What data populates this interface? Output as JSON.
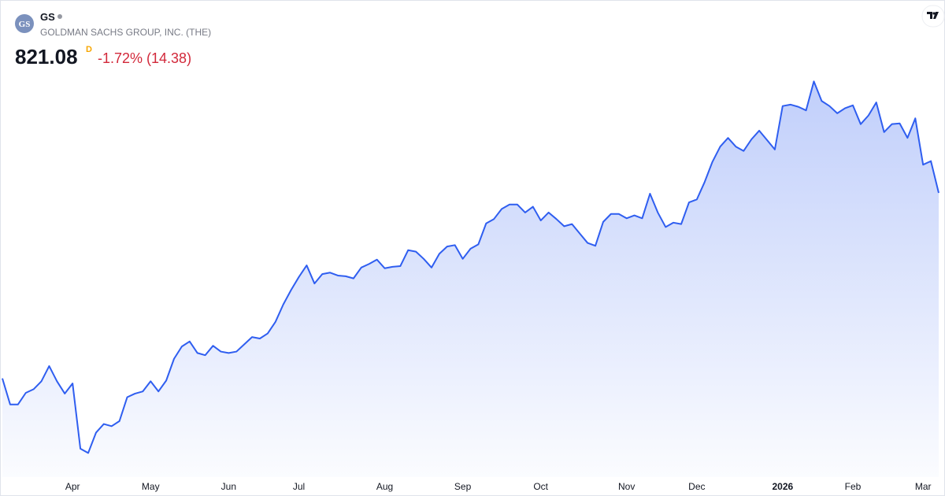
{
  "chart_data": {
    "type": "line",
    "title": "GS",
    "logo_text": "GS",
    "subtitle": "GOLDMAN SACHS GROUP, INC. (THE)",
    "price": 821.08,
    "price_flag": "D",
    "change": "-1.72% (14.38)",
    "categories": [
      null,
      null,
      null,
      null,
      null,
      null,
      null,
      null,
      null,
      "Apr",
      null,
      null,
      null,
      null,
      null,
      null,
      null,
      null,
      null,
      "May",
      null,
      null,
      null,
      null,
      null,
      null,
      null,
      null,
      null,
      "Jun",
      null,
      null,
      null,
      null,
      null,
      null,
      null,
      null,
      "Jul",
      null,
      null,
      null,
      null,
      null,
      null,
      null,
      null,
      null,
      null,
      "Aug",
      null,
      null,
      null,
      null,
      null,
      null,
      null,
      null,
      null,
      "Sep",
      null,
      null,
      null,
      null,
      null,
      null,
      null,
      null,
      null,
      "Oct",
      null,
      null,
      null,
      null,
      null,
      null,
      null,
      null,
      null,
      null,
      "Nov",
      null,
      null,
      null,
      null,
      null,
      null,
      null,
      null,
      "Dec",
      null,
      null,
      null,
      null,
      null,
      null,
      null,
      null,
      null,
      null,
      "2026",
      null,
      null,
      null,
      null,
      null,
      null,
      null,
      null,
      "Feb",
      null,
      null,
      null,
      null,
      null,
      null,
      null,
      null,
      "Mar",
      null,
      null
    ],
    "series": [
      {
        "color": "#2f5ef0",
        "values": [
          565,
          529,
          529,
          545,
          550,
          561,
          582,
          561,
          544,
          558,
          468,
          462,
          490,
          502,
          499,
          506,
          539,
          544,
          547,
          561,
          547,
          562,
          592,
          609,
          616,
          600,
          597,
          610,
          602,
          600,
          602,
          612,
          622,
          620,
          627,
          643,
          667,
          687,
          705,
          721,
          696,
          709,
          711,
          707,
          706,
          703,
          718,
          723,
          729,
          717,
          719,
          720,
          742,
          740,
          730,
          718,
          737,
          747,
          749,
          730,
          744,
          750,
          779,
          785,
          799,
          805,
          805,
          794,
          802,
          783,
          794,
          785,
          775,
          778,
          765,
          752,
          748,
          781,
          792,
          792,
          786,
          790,
          786,
          820,
          794,
          774,
          780,
          778,
          808,
          812,
          836,
          864,
          885,
          897,
          885,
          879,
          895,
          907,
          894,
          881,
          941,
          943,
          940,
          935,
          975,
          948,
          941,
          931,
          938,
          942,
          916,
          928,
          946,
          905,
          916,
          917,
          897,
          924,
          860,
          865,
          821.08
        ]
      }
    ],
    "ylim": [
      420,
      1000
    ],
    "grid": false
  }
}
